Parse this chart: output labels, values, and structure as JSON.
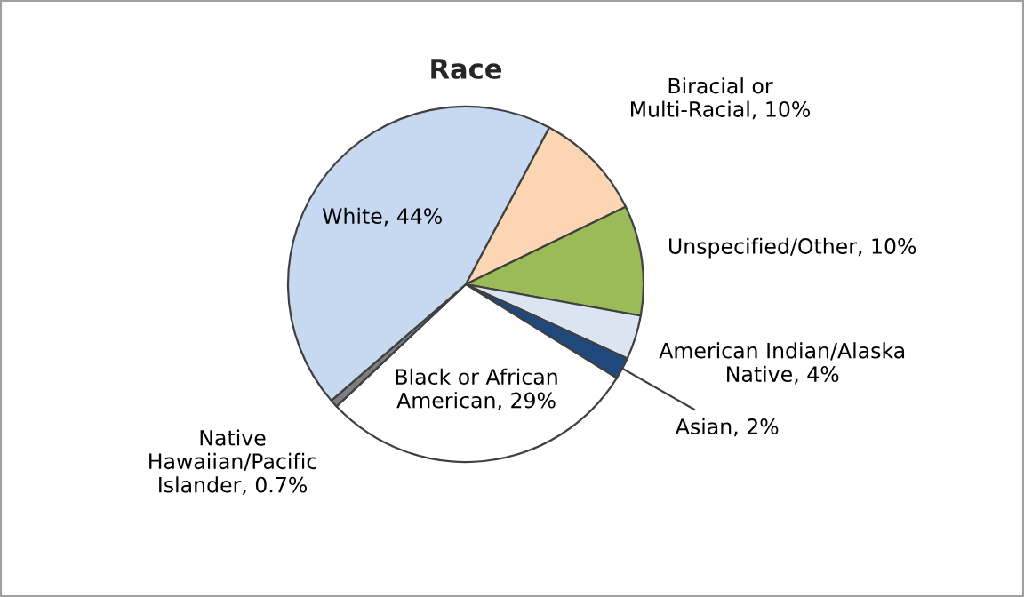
{
  "chart_data": {
    "type": "pie",
    "title": "Race",
    "categories": [
      "Biracial or Multi-Racial",
      "Unspecified/Other",
      "American Indian/Alaska Native",
      "Asian",
      "Black or African American",
      "Native Hawaiian/Pacific Islander",
      "White"
    ],
    "values": [
      10,
      10,
      4,
      2,
      29,
      0.7,
      44
    ],
    "value_labels": [
      "10%",
      "10%",
      "4%",
      "2%",
      "29%",
      "0.7%",
      "44%"
    ],
    "colors": [
      "#fcd5b4",
      "#9bbb59",
      "#dbe5f1",
      "#1f497d",
      "#ffffff",
      "#7f7f7f",
      "#c6d9f1"
    ],
    "legend": false
  }
}
